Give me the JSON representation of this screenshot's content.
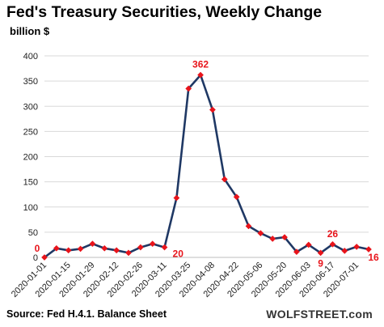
{
  "chart_data": {
    "type": "line",
    "title": "Fed's Treasury  Securities, Weekly Change",
    "ylabel": "billion $",
    "ylim": [
      0,
      400
    ],
    "yticks": [
      0,
      50,
      100,
      150,
      200,
      250,
      300,
      350,
      400
    ],
    "grid": true,
    "x": [
      "2020-01-01",
      "2020-01-08",
      "2020-01-15",
      "2020-01-22",
      "2020-01-29",
      "2020-02-05",
      "2020-02-12",
      "2020-02-19",
      "2020-02-26",
      "2020-03-04",
      "2020-03-11",
      "2020-03-18",
      "2020-03-25",
      "2020-04-01",
      "2020-04-08",
      "2020-04-15",
      "2020-04-22",
      "2020-04-29",
      "2020-05-06",
      "2020-05-13",
      "2020-05-20",
      "2020-05-27",
      "2020-06-03",
      "2020-06-10",
      "2020-06-17",
      "2020-06-24",
      "2020-07-01",
      "2020-07-08"
    ],
    "xtick_labels": [
      "2020-01-01",
      "2020-01-15",
      "2020-01-29",
      "2020-02-12",
      "2020-02-26",
      "2020-03-11",
      "2020-03-25",
      "2020-04-08",
      "2020-04-22",
      "2020-05-06",
      "2020-05-20",
      "2020-06-03",
      "2020-06-17",
      "2020-07-01"
    ],
    "series": [
      {
        "values": [
          0,
          18,
          14,
          17,
          27,
          18,
          14,
          9,
          20,
          27,
          20,
          118,
          335,
          362,
          293,
          155,
          120,
          62,
          48,
          37,
          40,
          11,
          25,
          9,
          26,
          13,
          21,
          16
        ],
        "color": "#1f3864",
        "marker_color": "#e8141b"
      }
    ],
    "annotations": [
      {
        "index": 0,
        "text": "0"
      },
      {
        "index": 10,
        "text": "20"
      },
      {
        "index": 13,
        "text": "362"
      },
      {
        "index": 23,
        "text": "9"
      },
      {
        "index": 24,
        "text": "26"
      },
      {
        "index": 27,
        "text": "16"
      }
    ]
  },
  "footer": {
    "source": "Source: Fed H.4.1. Balance Sheet",
    "brand": "WOLFSTREET.com"
  }
}
